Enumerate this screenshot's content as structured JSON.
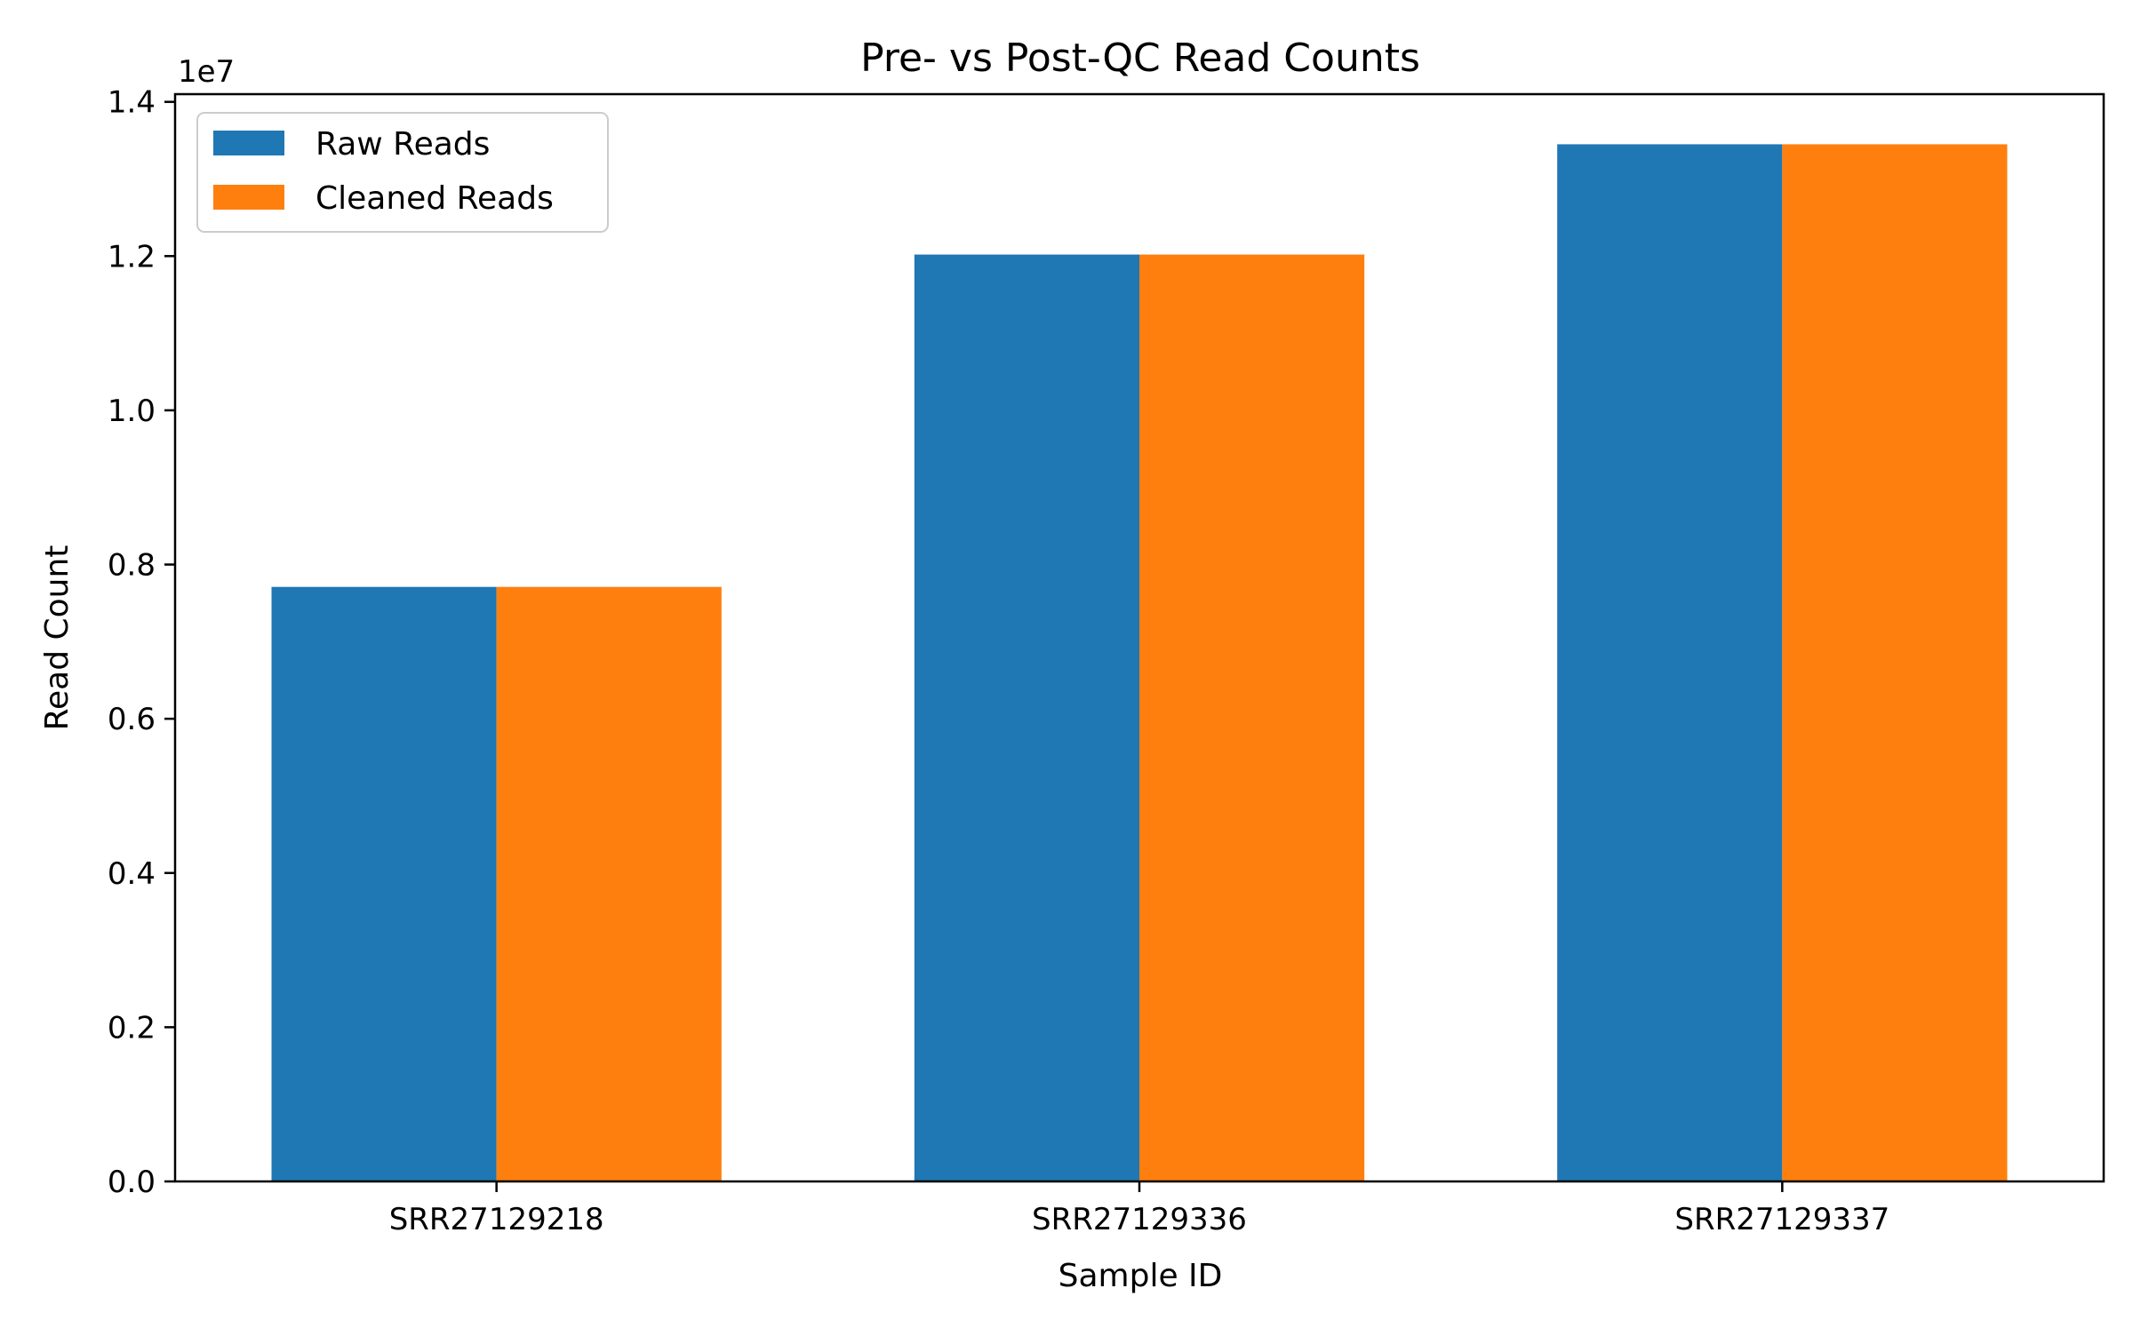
{
  "chart_data": {
    "type": "bar",
    "title": "Pre- vs Post-QC Read Counts",
    "xlabel": "Sample ID",
    "ylabel": "Read Count",
    "y_offset_label": "1e7",
    "categories": [
      "SRR27129218",
      "SRR27129336",
      "SRR27129337"
    ],
    "series": [
      {
        "name": "Raw Reads",
        "color": "#1f77b4",
        "values": [
          7710000,
          12020000,
          13450000
        ]
      },
      {
        "name": "Cleaned Reads",
        "color": "#ff7f0e",
        "values": [
          7710000,
          12020000,
          13450000
        ]
      }
    ],
    "ylim": [
      0,
      14100000
    ],
    "yticks": [
      0,
      2000000,
      4000000,
      6000000,
      8000000,
      10000000,
      12000000,
      14000000
    ],
    "ytick_labels": [
      "0.0",
      "0.2",
      "0.4",
      "0.6",
      "0.8",
      "1.0",
      "1.2",
      "1.4"
    ],
    "grid": false,
    "legend_position": "top-left"
  }
}
